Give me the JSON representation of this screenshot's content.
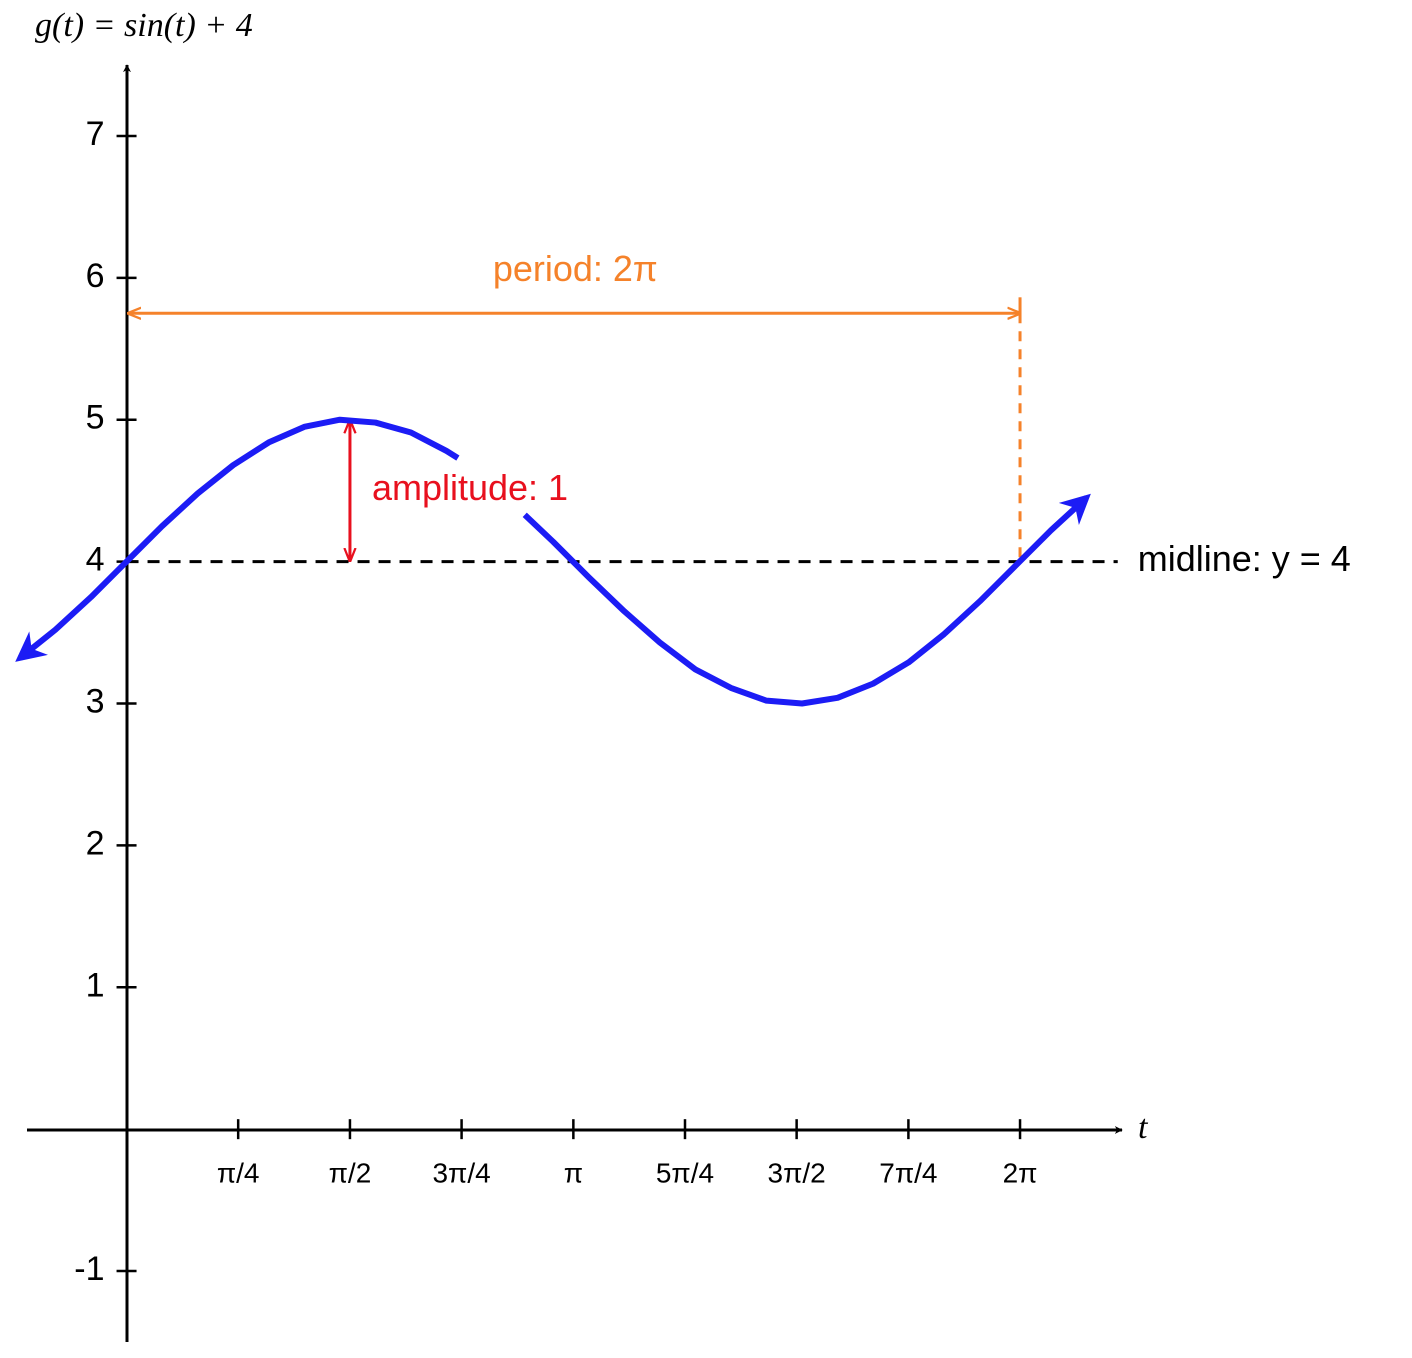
{
  "chart_data": {
    "type": "line",
    "title": "g(t) = sin(t) + 4",
    "x_label": "t",
    "x": [
      -0.75,
      -0.5,
      -0.25,
      0,
      0.25,
      0.5,
      0.75,
      1.0,
      1.25,
      1.5,
      1.75,
      2.0,
      2.25,
      2.33,
      2.5,
      2.8,
      3.0,
      3.25,
      3.5,
      3.75,
      4.0,
      4.25,
      4.5,
      4.75,
      5.0,
      5.25,
      5.5,
      5.75,
      6.0,
      6.25,
      6.5,
      6.75
    ],
    "series": [
      {
        "color": "#1c1cf5",
        "values": [
          3.32,
          3.52,
          3.75,
          4,
          4.25,
          4.48,
          4.68,
          4.84,
          4.95,
          5.0,
          4.98,
          4.91,
          4.78,
          4.73,
          null,
          4.33,
          4.14,
          3.89,
          3.65,
          3.43,
          3.24,
          3.11,
          3.02,
          3.0,
          3.04,
          3.14,
          3.29,
          3.49,
          3.72,
          3.97,
          4.22,
          4.45
        ]
      }
    ],
    "xlim": [
      -0.7,
      7.0
    ],
    "ylim": [
      -1.5,
      7.5
    ],
    "xticks": [
      {
        "value": 0.785,
        "label": "π/4"
      },
      {
        "value": 1.571,
        "label": "π/2"
      },
      {
        "value": 2.356,
        "label": "3π/4"
      },
      {
        "value": 3.142,
        "label": "π"
      },
      {
        "value": 3.927,
        "label": "5π/4"
      },
      {
        "value": 4.712,
        "label": "3π/2"
      },
      {
        "value": 5.498,
        "label": "7π/4"
      },
      {
        "value": 6.283,
        "label": "2π"
      }
    ],
    "yticks": [
      7,
      6,
      5,
      4,
      3,
      2,
      1,
      -1
    ],
    "annotations": {
      "period": {
        "text": "period: 2π",
        "color": "#f5822a",
        "x_start": 0,
        "x_end": 6.283,
        "y": 5.75
      },
      "amplitude": {
        "text": "amplitude: 1",
        "color": "#e8101e",
        "x": 1.571,
        "y_from": 4,
        "y_to": 5
      },
      "midline": {
        "text": "midline: y = 4",
        "y": 4,
        "x_end": 6.97
      }
    }
  }
}
